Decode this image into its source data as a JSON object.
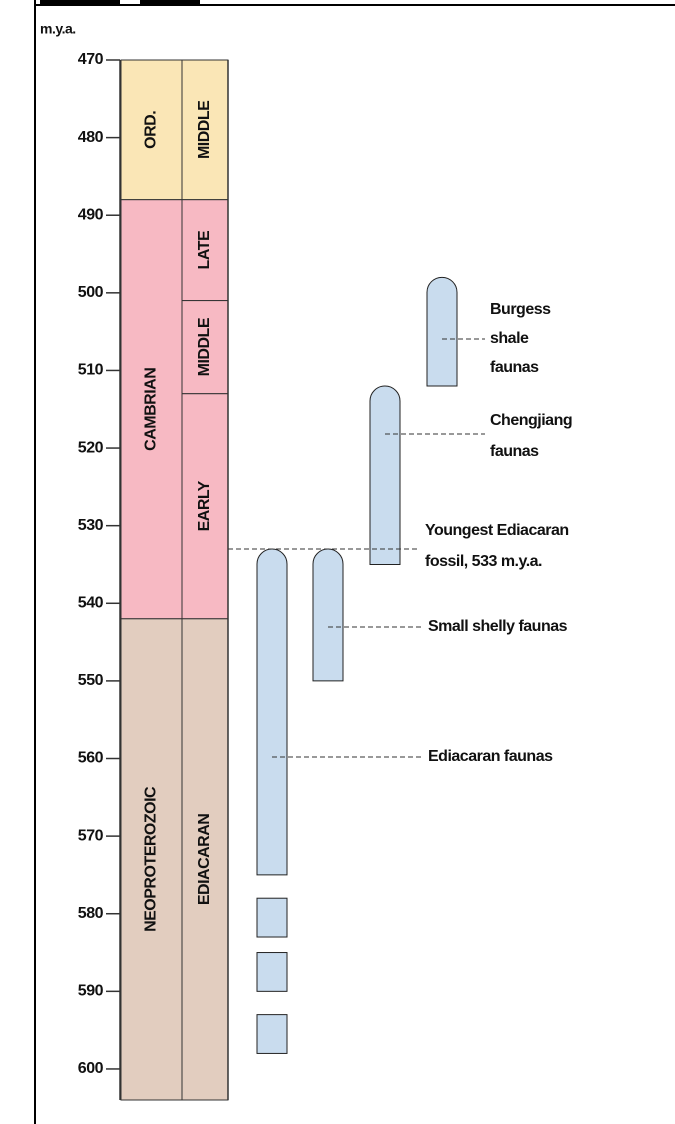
{
  "chart_data": {
    "type": "range",
    "axis_label": "m.y.a.",
    "ylim": [
      470,
      604
    ],
    "yticks": [
      470,
      480,
      490,
      500,
      510,
      520,
      530,
      540,
      550,
      560,
      570,
      580,
      590,
      600
    ],
    "periods": [
      {
        "name": "ORD.",
        "start": 470,
        "end": 488,
        "color": "#fae6b6"
      },
      {
        "name": "CAMBRIAN",
        "start": 488,
        "end": 542,
        "color": "#f7b9c3"
      },
      {
        "name": "NEOPROTEROZOIC",
        "start": 542,
        "end": 604,
        "color": "#e2cdbf"
      }
    ],
    "epochs": [
      {
        "name": "MIDDLE",
        "start": 470,
        "end": 488,
        "color": "#fae6b6"
      },
      {
        "name": "LATE",
        "start": 488,
        "end": 501,
        "color": "#f7b9c3"
      },
      {
        "name": "MIDDLE",
        "start": 501,
        "end": 513,
        "color": "#f7b9c3"
      },
      {
        "name": "EARLY",
        "start": 513,
        "end": 542,
        "color": "#f7b9c3"
      },
      {
        "name": "EDIACARAN",
        "start": 542,
        "end": 604,
        "color": "#e2cdbf"
      }
    ],
    "fauna_color": "#c9dcee",
    "faunas": [
      {
        "label": [
          "Burgess",
          "shale",
          "faunas"
        ],
        "ranges": [
          [
            498,
            512
          ]
        ]
      },
      {
        "label": [
          "Chengjiang",
          "faunas"
        ],
        "ranges": [
          [
            512,
            535
          ]
        ]
      },
      {
        "label": [
          "Small shelly faunas"
        ],
        "ranges": [
          [
            533,
            550
          ]
        ]
      },
      {
        "label": [
          "Ediacaran faunas"
        ],
        "ranges": [
          [
            533,
            575
          ],
          [
            578,
            583
          ],
          [
            585,
            590
          ],
          [
            593,
            598
          ]
        ]
      }
    ],
    "annotation": {
      "label": [
        "Youngest Ediacaran",
        "fossil, 533 m.y.a."
      ],
      "value": 533
    }
  }
}
